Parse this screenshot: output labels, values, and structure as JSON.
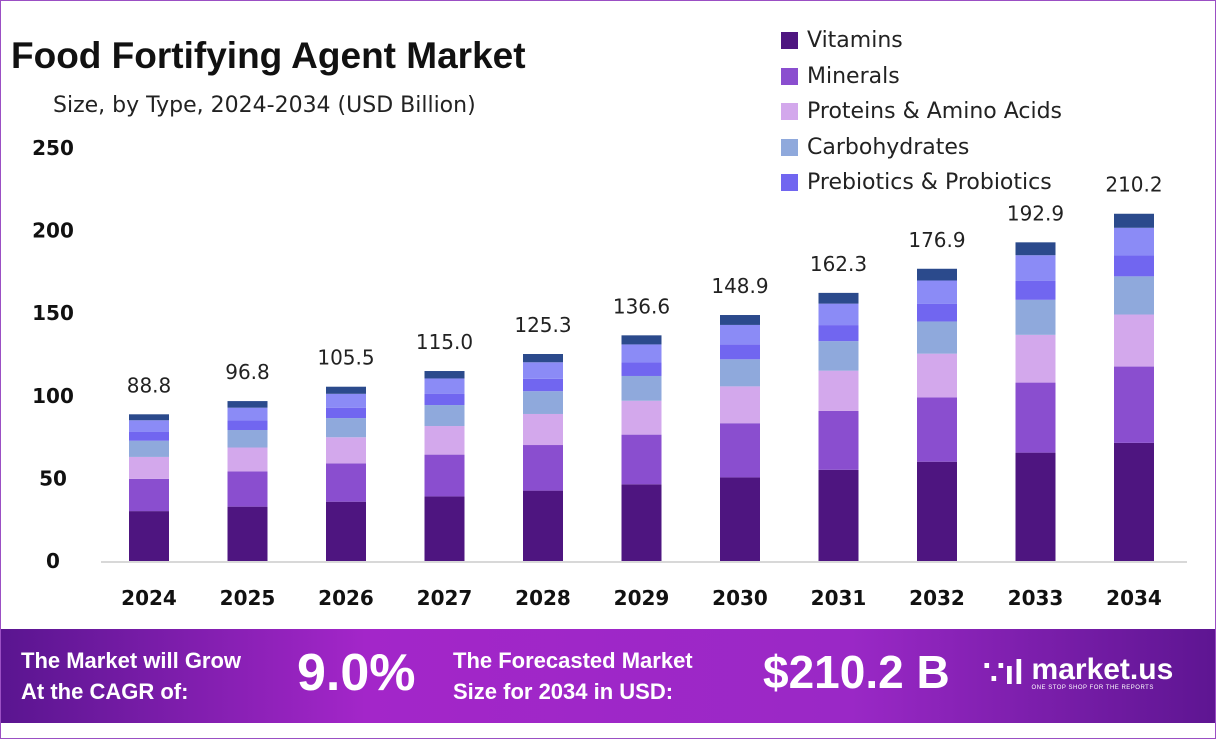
{
  "chart_data": {
    "type": "bar",
    "stacked": true,
    "title": "Food Fortifying Agent Market",
    "subtitle": "Size, by Type, 2024-2034 (USD Billion)",
    "xlabel": "",
    "ylabel": "",
    "ylim": [
      0,
      250
    ],
    "yticks": [
      0,
      50,
      100,
      150,
      200,
      250
    ],
    "grid": false,
    "legend_position": "top-right",
    "categories": [
      "2024",
      "2025",
      "2026",
      "2027",
      "2028",
      "2029",
      "2030",
      "2031",
      "2032",
      "2033",
      "2034"
    ],
    "totals": [
      "88.8",
      "96.8",
      "105.5",
      "115.0",
      "125.3",
      "136.6",
      "148.9",
      "162.3",
      "176.9",
      "192.9",
      "210.2"
    ],
    "series": [
      {
        "name": "Vitamins",
        "color": "#4e1580",
        "values": [
          30.2,
          32.9,
          35.9,
          39.1,
          42.6,
          46.4,
          50.6,
          55.2,
          60.1,
          65.6,
          71.5
        ]
      },
      {
        "name": "Minerals",
        "color": "#8a4ecf",
        "values": [
          19.5,
          21.3,
          23.2,
          25.3,
          27.6,
          30.1,
          32.8,
          35.7,
          38.9,
          42.4,
          46.2
        ]
      },
      {
        "name": "Proteins & Amino Acids",
        "color": "#d3a8ec",
        "values": [
          13.3,
          14.5,
          15.8,
          17.3,
          18.8,
          20.5,
          22.3,
          24.3,
          26.5,
          28.9,
          31.5
        ]
      },
      {
        "name": "Carbohydrates",
        "color": "#8fa9dc",
        "values": [
          9.8,
          10.6,
          11.6,
          12.7,
          13.8,
          15.0,
          16.4,
          17.9,
          19.5,
          21.2,
          23.1
        ]
      },
      {
        "name": "Prebiotics & Probiotics",
        "color": "#7166f0",
        "values": [
          5.3,
          5.8,
          6.3,
          6.9,
          7.5,
          8.2,
          8.9,
          9.7,
          10.6,
          11.6,
          12.6
        ]
      },
      {
        "color": "#8b8bf6",
        "values": [
          7.1,
          7.7,
          8.4,
          9.2,
          10.0,
          10.9,
          11.9,
          13.0,
          14.2,
          15.4,
          16.8
        ]
      },
      {
        "color": "#2b4a8c",
        "values": [
          3.6,
          4.0,
          4.3,
          4.5,
          5.0,
          5.5,
          6.0,
          6.5,
          7.1,
          7.8,
          8.5
        ]
      }
    ]
  },
  "footer": {
    "cagr_label": "The Market will Grow At the CAGR of:",
    "cagr_line1": "The Market will Grow",
    "cagr_line2": "At the CAGR of:",
    "cagr_value": "9.0%",
    "forecast_line1": "The Forecasted Market",
    "forecast_line2": "Size for 2034 in USD:",
    "forecast_value": "$210.2 B",
    "logo_name": "market.us",
    "logo_tagline": "ONE STOP SHOP FOR THE REPORTS"
  }
}
